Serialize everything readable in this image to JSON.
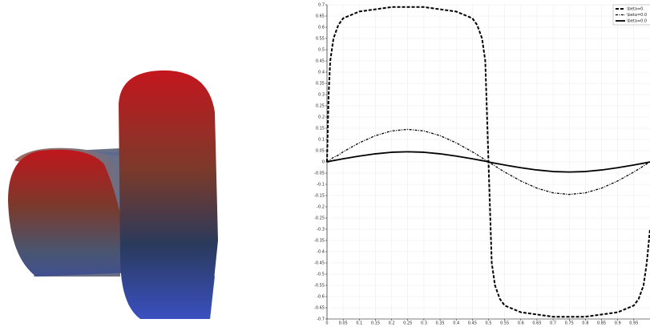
{
  "chart_data": {
    "type": "line",
    "x": [
      0,
      0.005,
      0.01,
      0.02,
      0.035,
      0.05,
      0.1,
      0.15,
      0.2,
      0.25,
      0.3,
      0.35,
      0.4,
      0.45,
      0.465,
      0.48,
      0.49,
      0.5,
      0.51,
      0.52,
      0.535,
      0.55,
      0.6,
      0.65,
      0.7,
      0.75,
      0.8,
      0.85,
      0.9,
      0.95,
      0.965,
      0.98,
      0.99,
      1
    ],
    "series": [
      {
        "name": "\\beta=0.",
        "color": "#000000",
        "dash": "4,2",
        "width": 2,
        "values": [
          0,
          0.3,
          0.45,
          0.55,
          0.61,
          0.64,
          0.67,
          0.68,
          0.69,
          0.69,
          0.69,
          0.68,
          0.67,
          0.64,
          0.61,
          0.55,
          0.45,
          0,
          -0.45,
          -0.55,
          -0.61,
          -0.64,
          -0.67,
          -0.68,
          -0.69,
          -0.69,
          -0.69,
          -0.68,
          -0.67,
          -0.64,
          -0.61,
          -0.55,
          -0.45,
          -0.3
        ]
      },
      {
        "name": "\\beta=0.0",
        "color": "#000000",
        "dash": "3,1.5,1,1.5",
        "width": 1.3,
        "values": [
          0,
          0.005,
          0.01,
          0.02,
          0.03,
          0.045,
          0.085,
          0.117,
          0.138,
          0.145,
          0.138,
          0.117,
          0.085,
          0.045,
          0.032,
          0.018,
          0.009,
          0,
          -0.009,
          -0.018,
          -0.032,
          -0.045,
          -0.085,
          -0.117,
          -0.138,
          -0.145,
          -0.138,
          -0.117,
          -0.085,
          -0.045,
          -0.032,
          -0.018,
          -0.009,
          0
        ]
      },
      {
        "name": "\\beta=0.0",
        "color": "#000000",
        "dash": "none",
        "width": 1.8,
        "values": [
          0,
          0.001,
          0.003,
          0.006,
          0.01,
          0.014,
          0.026,
          0.036,
          0.043,
          0.045,
          0.043,
          0.036,
          0.026,
          0.014,
          0.01,
          0.006,
          0.003,
          0,
          -0.003,
          -0.006,
          -0.01,
          -0.014,
          -0.026,
          -0.036,
          -0.043,
          -0.045,
          -0.043,
          -0.036,
          -0.026,
          -0.014,
          -0.01,
          -0.006,
          -0.003,
          0
        ]
      }
    ],
    "xlim": [
      0,
      1
    ],
    "xticks": [
      0,
      0.05,
      0.1,
      0.15,
      0.2,
      0.25,
      0.3,
      0.35,
      0.4,
      0.45,
      0.5,
      0.55,
      0.6,
      0.65,
      0.7,
      0.75,
      0.8,
      0.85,
      0.9,
      0.95
    ],
    "ylim": [
      -0.7,
      0.7
    ],
    "yticks": [
      -0.7,
      -0.65,
      -0.6,
      -0.55,
      -0.5,
      -0.45,
      -0.4,
      -0.35,
      -0.3,
      -0.25,
      -0.2,
      -0.15,
      -0.1,
      -0.05,
      0,
      0.05,
      0.1,
      0.15,
      0.2,
      0.25,
      0.3,
      0.35,
      0.4,
      0.45,
      0.5,
      0.55,
      0.6,
      0.65,
      0.7
    ],
    "grid": true,
    "legend": "top-right"
  }
}
